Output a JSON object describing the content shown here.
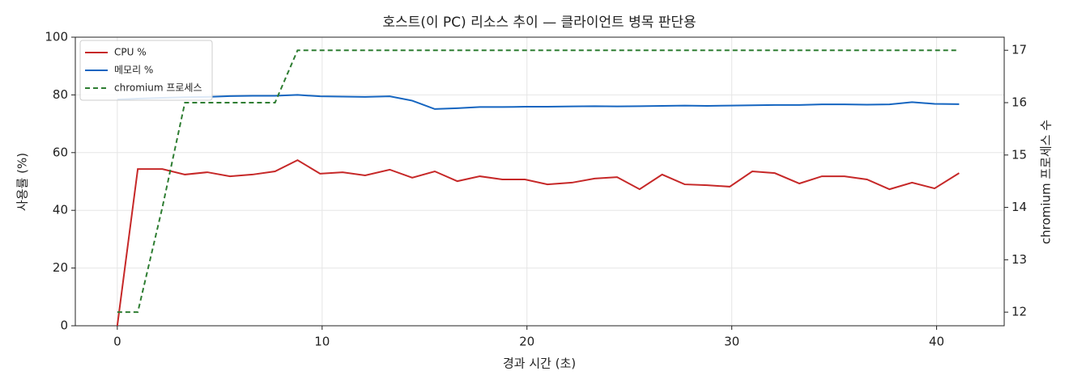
{
  "chart_data": {
    "type": "line",
    "title": "호스트(이 PC) 리소스 추이 — 클라이언트 병목 판단용",
    "x_label": "경과 시간 (초)",
    "y_label": "사용률 (%)",
    "y2_label": "chromium 프로세스 수",
    "x": [
      0,
      1.0,
      2.2,
      3.3,
      4.4,
      5.5,
      6.6,
      7.7,
      8.8,
      9.9,
      11.0,
      12.1,
      13.3,
      14.4,
      15.5,
      16.6,
      17.7,
      18.8,
      19.9,
      21.0,
      22.2,
      23.3,
      24.4,
      25.5,
      26.6,
      27.7,
      28.8,
      29.9,
      31.0,
      32.1,
      33.3,
      34.4,
      35.5,
      36.6,
      37.7,
      38.8,
      39.9,
      41.1
    ],
    "series": [
      {
        "name": "CPU %",
        "color": "#c62828",
        "linestyle": "solid",
        "values": [
          0,
          54.3,
          54.3,
          52.4,
          53.2,
          51.8,
          52.4,
          53.5,
          57.4,
          52.7,
          53.2,
          52.1,
          54.1,
          51.3,
          53.5,
          50.1,
          51.8,
          50.7,
          50.7,
          49.0,
          49.6,
          51.0,
          51.5,
          47.3,
          52.4,
          49.0,
          48.7,
          48.2,
          53.5,
          52.9,
          49.3,
          51.8,
          51.8,
          50.7,
          47.3,
          49.6,
          47.6,
          52.9
        ]
      },
      {
        "name": "메모리 %",
        "color": "#1565c0",
        "linestyle": "solid",
        "values": [
          78.4,
          78.7,
          79.0,
          79.2,
          79.3,
          79.6,
          79.7,
          79.7,
          80.0,
          79.5,
          79.4,
          79.3,
          79.5,
          78.0,
          75.1,
          75.4,
          75.8,
          75.8,
          75.9,
          75.9,
          76.0,
          76.1,
          76.0,
          76.1,
          76.2,
          76.3,
          76.2,
          76.3,
          76.4,
          76.5,
          76.5,
          76.7,
          76.7,
          76.6,
          76.7,
          77.5,
          76.9,
          76.8
        ]
      },
      {
        "name": "chromium 프로세스",
        "color": "#2e7d32",
        "linestyle": "dashed",
        "axis": "y2",
        "values": [
          12,
          12,
          14,
          16,
          16,
          16,
          16,
          16,
          17,
          17,
          17,
          17,
          17,
          17,
          17,
          17,
          17,
          17,
          17,
          17,
          17,
          17,
          17,
          17,
          17,
          17,
          17,
          17,
          17,
          17,
          17,
          17,
          17,
          17,
          17,
          17,
          17,
          17
        ]
      }
    ],
    "xlim": [
      -2.05,
      43.3
    ],
    "xticks": [
      0,
      10,
      20,
      30,
      40
    ],
    "ylim": [
      0,
      100
    ],
    "yticks": [
      0,
      20,
      40,
      60,
      80,
      100
    ],
    "y2lim": [
      11.74,
      17.25
    ],
    "y2ticks": [
      12,
      13,
      14,
      15,
      16,
      17
    ],
    "grid": true,
    "legend": "upper-left"
  }
}
